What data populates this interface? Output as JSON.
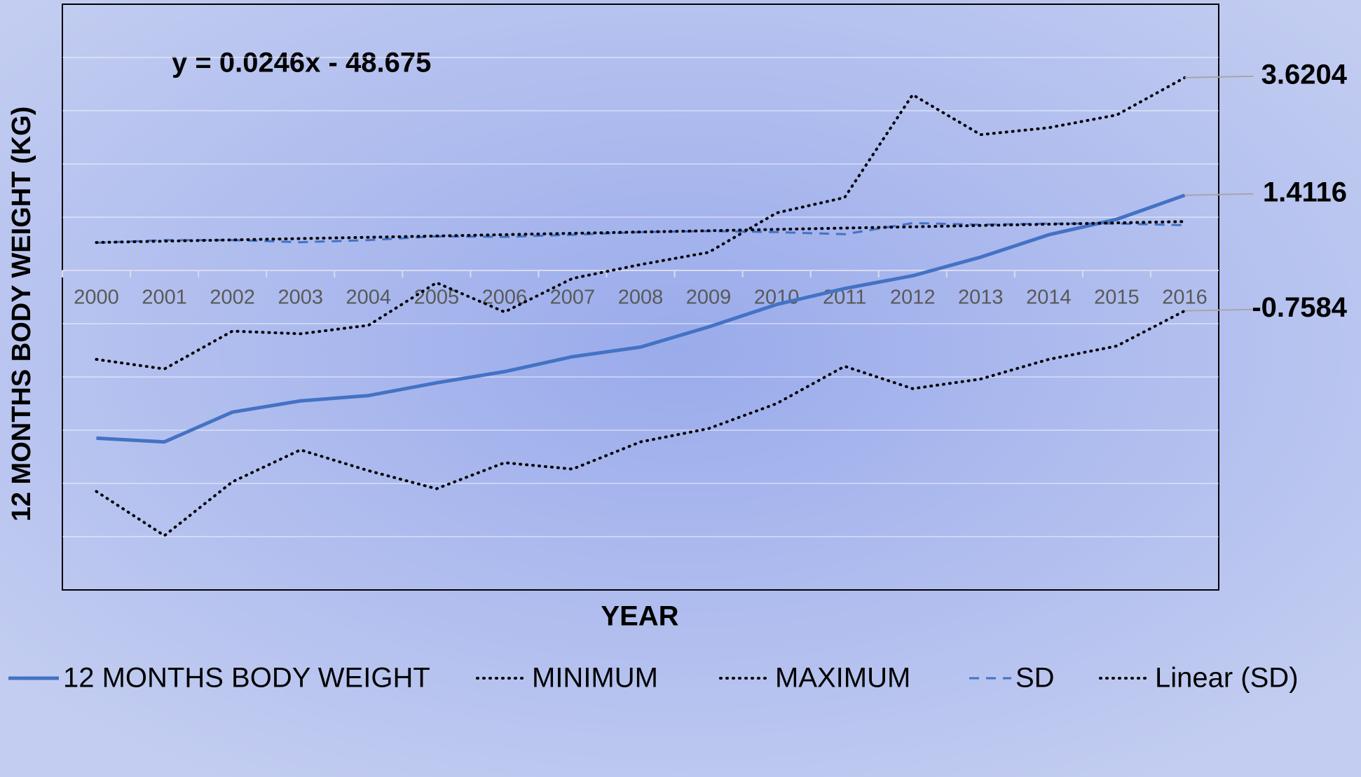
{
  "chart_data": {
    "type": "line",
    "y_axis_label": "12 MONTHS BODY WEIGHT (KG)",
    "x_axis_label": "YEAR",
    "trendline_equation": "y = 0.0246x - 48.675",
    "categories": [
      "2000",
      "2001",
      "2002",
      "2003",
      "2004",
      "2005",
      "2006",
      "2007",
      "2008",
      "2009",
      "2010",
      "2011",
      "2012",
      "2013",
      "2014",
      "2015",
      "2016"
    ],
    "ylim": [
      -6,
      5
    ],
    "yticks": [
      -5,
      -4,
      -3,
      -2,
      -1,
      0,
      1,
      2,
      3,
      4
    ],
    "grid": true,
    "legend": "bottom",
    "series": [
      {
        "name": "12 MONTHS BODY WEIGHT",
        "color": "#4472c4",
        "style": "solid",
        "labeled": true,
        "values": [
          -3.15,
          -3.22,
          -2.66,
          -2.45,
          -2.35,
          -2.11,
          -1.9,
          -1.62,
          -1.44,
          -1.06,
          -0.64,
          -0.34,
          -0.1,
          0.25,
          0.67,
          0.96,
          1.4116
        ]
      },
      {
        "name": "MINIMUM",
        "color": "#000000",
        "style": "dotted",
        "labeled": true,
        "values": [
          -4.15,
          -4.98,
          -3.97,
          -3.37,
          -3.76,
          -4.1,
          -3.61,
          -3.73,
          -3.22,
          -2.97,
          -2.5,
          -1.8,
          -2.22,
          -2.04,
          -1.67,
          -1.42,
          -0.7584
        ]
      },
      {
        "name": "MAXIMUM",
        "color": "#000000",
        "style": "dotted",
        "labeled": true,
        "values": [
          -1.67,
          -1.85,
          -1.14,
          -1.19,
          -1.03,
          -0.23,
          -0.78,
          -0.15,
          0.11,
          0.34,
          1.08,
          1.37,
          3.3,
          2.55,
          2.68,
          2.92,
          3.6204
        ]
      },
      {
        "name": "SD",
        "color": "#4472c4",
        "style": "dashed",
        "labeled": false,
        "values": [
          0.52,
          0.57,
          0.57,
          0.53,
          0.57,
          0.64,
          0.63,
          0.67,
          0.72,
          0.74,
          0.72,
          0.68,
          0.89,
          0.86,
          0.88,
          0.88,
          0.85
        ]
      },
      {
        "name": "Linear (SD)",
        "color": "#000000",
        "style": "dotted",
        "labeled": false,
        "values": [
          0.525,
          0.55,
          0.574,
          0.599,
          0.623,
          0.648,
          0.673,
          0.697,
          0.722,
          0.746,
          0.771,
          0.796,
          0.82,
          0.845,
          0.869,
          0.894,
          0.919
        ]
      }
    ]
  }
}
